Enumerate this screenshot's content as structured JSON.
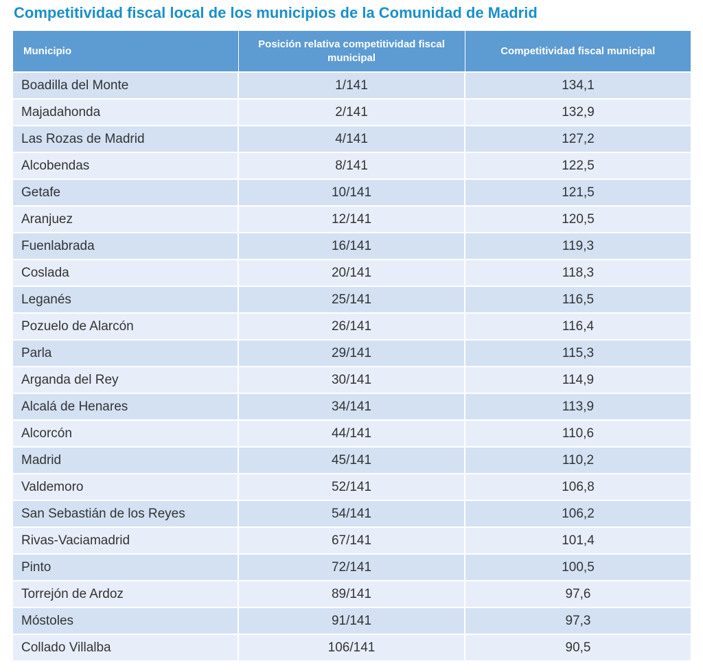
{
  "title": "Competitividad fiscal local de los municipios de la Comunidad de Madrid",
  "table": {
    "headers": [
      "Municipio",
      "Posición relativa competitividad fiscal municipal",
      "Competitividad fiscal municipal"
    ],
    "rows": [
      [
        "Boadilla del Monte",
        "1/141",
        "134,1"
      ],
      [
        "Majadahonda",
        "2/141",
        "132,9"
      ],
      [
        "Las Rozas de Madrid",
        "4/141",
        "127,2"
      ],
      [
        "Alcobendas",
        "8/141",
        "122,5"
      ],
      [
        "Getafe",
        "10/141",
        "121,5"
      ],
      [
        "Aranjuez",
        "12/141",
        "120,5"
      ],
      [
        "Fuenlabrada",
        "16/141",
        "119,3"
      ],
      [
        "Coslada",
        "20/141",
        "118,3"
      ],
      [
        "Leganés",
        "25/141",
        "116,5"
      ],
      [
        "Pozuelo de Alarcón",
        "26/141",
        "116,4"
      ],
      [
        "Parla",
        "29/141",
        "115,3"
      ],
      [
        "Arganda del Rey",
        "30/141",
        "114,9"
      ],
      [
        "Alcalá de Henares",
        "34/141",
        "113,9"
      ],
      [
        "Alcorcón",
        "44/141",
        "110,6"
      ],
      [
        "Madrid",
        "45/141",
        "110,2"
      ],
      [
        "Valdemoro",
        "52/141",
        "106,8"
      ],
      [
        "San Sebastián de los Reyes",
        "54/141",
        "106,2"
      ],
      [
        "Rivas-Vaciamadrid",
        "67/141",
        "101,4"
      ],
      [
        "Pinto",
        "72/141",
        "100,5"
      ],
      [
        "Torrejón de Ardoz",
        "89/141",
        "97,6"
      ],
      [
        "Móstoles",
        "91/141",
        "97,3"
      ],
      [
        "Collado Villalba",
        "106/141",
        "90,5"
      ]
    ]
  }
}
